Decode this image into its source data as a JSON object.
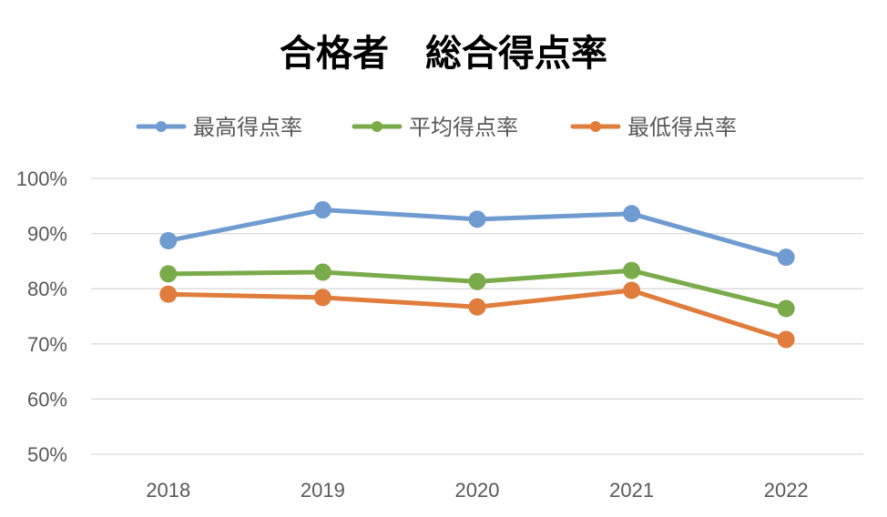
{
  "chart_data": {
    "type": "line",
    "title": "合格者　総合得点率",
    "categories": [
      "2018",
      "2019",
      "2020",
      "2021",
      "2022"
    ],
    "series": [
      {
        "name": "最高得点率",
        "color": "#6f9bd1",
        "values": [
          88.7,
          94.3,
          92.6,
          93.6,
          85.7
        ]
      },
      {
        "name": "平均得点率",
        "color": "#7aab4a",
        "values": [
          82.7,
          83.0,
          81.3,
          83.3,
          76.4
        ]
      },
      {
        "name": "最低得点率",
        "color": "#e07c3c",
        "values": [
          79.0,
          78.4,
          76.7,
          79.7,
          70.8
        ]
      }
    ],
    "yticks": [
      "50%",
      "60%",
      "70%",
      "80%",
      "90%",
      "100%"
    ],
    "ylim": [
      50,
      100
    ],
    "ytick_step": 10,
    "y_unit": "%",
    "grid": true,
    "legend_position": "top",
    "xlabel": "",
    "ylabel": ""
  }
}
